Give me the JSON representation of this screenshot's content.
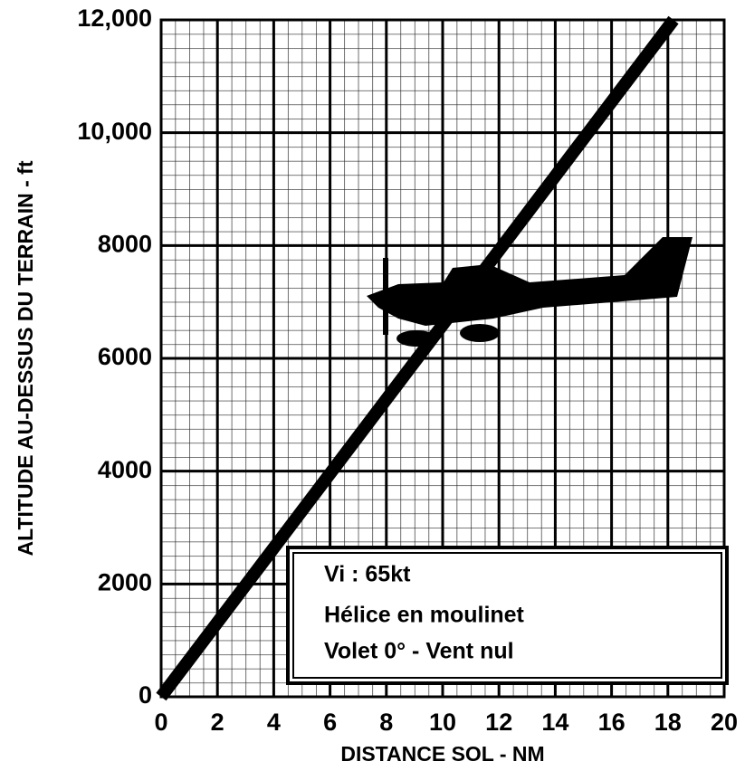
{
  "chart_data": {
    "type": "line",
    "x_label": "DISTANCE SOL - NM",
    "y_label": "ALTITUDE AU-DESSUS DU TERRAIN - ft",
    "x": [
      0,
      18.2
    ],
    "series": [
      {
        "color": "#000000",
        "values": [
          0,
          12000
        ]
      }
    ],
    "xlim": [
      0,
      20
    ],
    "xticks": [
      0,
      2,
      4,
      6,
      8,
      10,
      12,
      14,
      16,
      18,
      20
    ],
    "ylim": [
      0,
      12000
    ],
    "yticks": [
      0,
      2000,
      4000,
      6000,
      8000,
      {
        "value": 10000,
        "label": "10,000"
      },
      {
        "value": 12000,
        "label": "12,000"
      }
    ],
    "grid": true,
    "annotations": [
      "Vi : 65kt",
      "Hélice en moulinet",
      "Volet 0° - Vent nul"
    ]
  }
}
